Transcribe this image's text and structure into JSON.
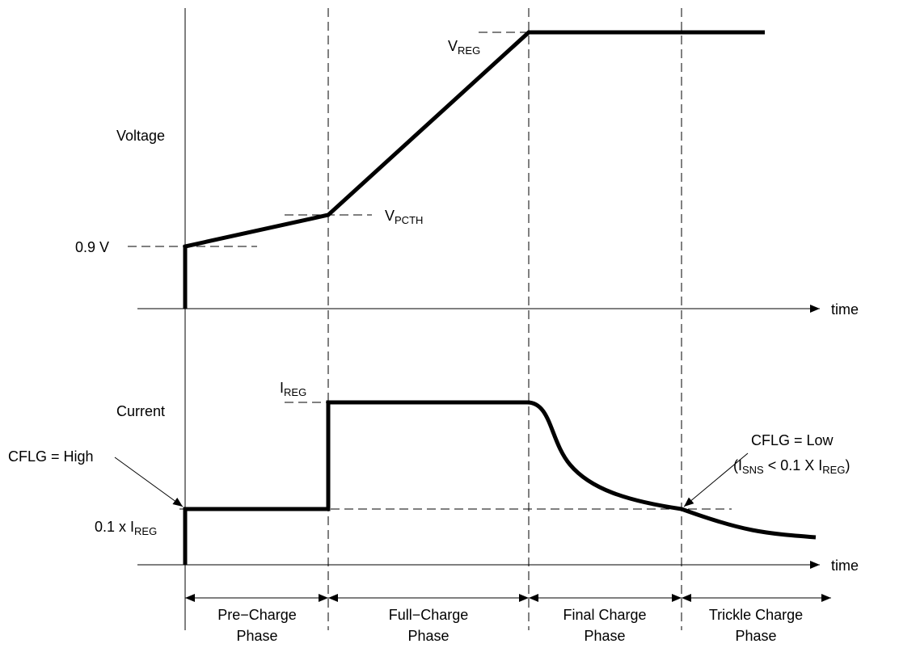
{
  "diagram": {
    "voltage_panel": {
      "label": "Voltage",
      "v_reg": {
        "main": "V",
        "sub": "REG"
      },
      "v_pcth": {
        "main": "V",
        "sub": "PCTH"
      },
      "start_voltage": "0.9 V",
      "time_label": "time"
    },
    "current_panel": {
      "label": "Current",
      "i_reg": {
        "main": "I",
        "sub": "REG"
      },
      "tenth_i_reg": {
        "prefix": "0.1 x I",
        "sub": "REG"
      },
      "time_label": "time"
    },
    "annotations": {
      "cflg_high": "CFLG = High",
      "cflg_low": "CFLG = Low",
      "cflg_low_condition": {
        "open": "(I",
        "sub1": "SNS",
        "mid": " < 0.1 X I",
        "sub2": "REG",
        "close": ")"
      }
    },
    "phases": [
      {
        "line1": "Pre−Charge",
        "line2": "Phase"
      },
      {
        "line1": "Full−Charge",
        "line2": "Phase"
      },
      {
        "line1": "Final Charge",
        "line2": "Phase"
      },
      {
        "line1": "Trickle Charge",
        "line2": "Phase"
      }
    ]
  }
}
